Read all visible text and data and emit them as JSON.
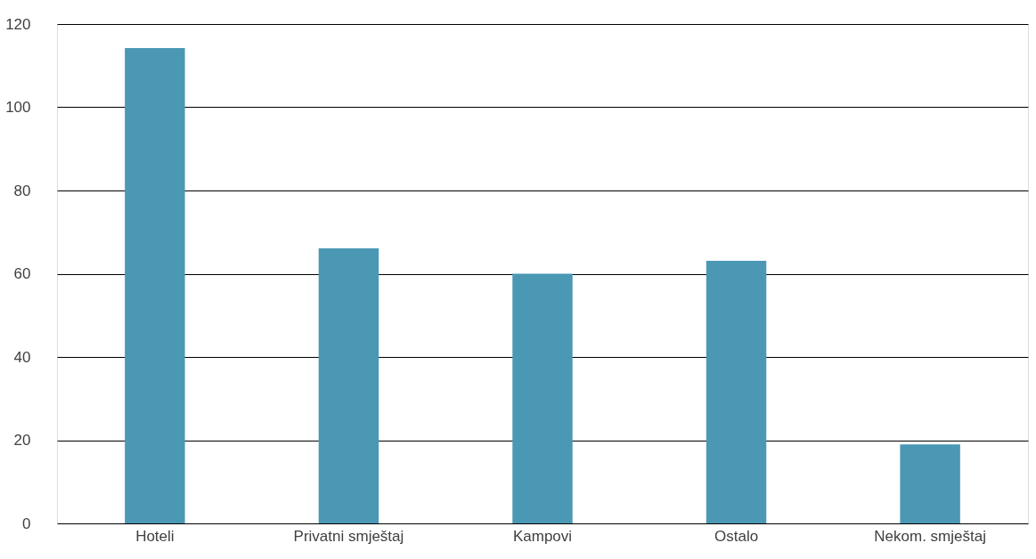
{
  "chart_data": {
    "type": "bar",
    "categories": [
      "Hoteli",
      "Privatni smještaj",
      "Kampovi",
      "Ostalo",
      "Nekom. smještaj"
    ],
    "values": [
      114.2,
      66.1,
      60,
      63.1,
      19
    ],
    "color": "#4b98b5",
    "ylim": [
      0,
      120
    ],
    "yticks": [
      0,
      20,
      40,
      60,
      80,
      100,
      120
    ],
    "grid": "y"
  }
}
